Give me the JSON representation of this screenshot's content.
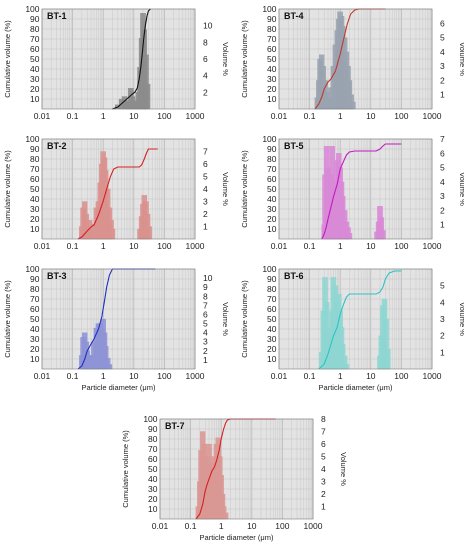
{
  "chart_data": [
    {
      "type": "bar",
      "title": "BT-1",
      "xlabel": "",
      "ylabel": "Cumulative volume (%)",
      "y2label": "Volume %",
      "x_scale": "log",
      "xlim": [
        0.01,
        1000
      ],
      "ylim": [
        0,
        100
      ],
      "y2lim": [
        0,
        12
      ],
      "x_ticks": [
        "0.01",
        "0.1",
        "1",
        "10",
        "100",
        "1000"
      ],
      "y_ticks": [
        "10",
        "20",
        "30",
        "40",
        "50",
        "60",
        "70",
        "80",
        "90",
        "100"
      ],
      "y2_ticks": [
        "2",
        "4",
        "6",
        "8",
        "10"
      ],
      "bar_color": "#8c8c8c",
      "line_color": "#111111",
      "distribution": {
        "name": "Volume %",
        "x": [
          3,
          4,
          5,
          6,
          7,
          8,
          9,
          10,
          12,
          14,
          16,
          18,
          20,
          22,
          25,
          28
        ],
        "values": [
          0.5,
          1.2,
          1.5,
          1.0,
          0.9,
          2.5,
          1.5,
          0.8,
          1.0,
          2.0,
          5.0,
          8.5,
          11.5,
          9.5,
          6.5,
          3.0
        ]
      },
      "cumulative": {
        "name": "Cumulative volume (%)",
        "x": [
          2,
          3,
          5,
          7,
          9,
          11,
          13,
          15,
          17,
          19,
          21,
          24,
          27,
          30,
          35
        ],
        "values": [
          0,
          2,
          8,
          12,
          15,
          17,
          21,
          30,
          42,
          56,
          70,
          84,
          93,
          98,
          100
        ]
      }
    },
    {
      "type": "bar",
      "title": "BT-4",
      "xlabel": "",
      "ylabel": "Cumulative volume (%)",
      "y2label": "Volume %",
      "x_scale": "log",
      "xlim": [
        0.01,
        1000
      ],
      "ylim": [
        0,
        100
      ],
      "y2lim": [
        0,
        7
      ],
      "x_ticks": [
        "0.01",
        "0.1",
        "1",
        "10",
        "100",
        "1000"
      ],
      "y_ticks": [
        "10",
        "20",
        "30",
        "40",
        "50",
        "60",
        "70",
        "80",
        "90",
        "100"
      ],
      "y2_ticks": [
        "1",
        "2",
        "3",
        "4",
        "5",
        "6"
      ],
      "bar_color": "#9aa3b0",
      "line_color": "#c0392b",
      "distribution": {
        "name": "Volume %",
        "x": [
          0.18,
          0.2,
          0.22,
          0.25,
          0.28,
          0.32,
          0.36,
          0.4,
          0.45,
          0.5,
          0.6,
          0.7,
          0.8,
          0.9,
          1.0,
          1.1,
          1.2,
          1.4,
          1.6,
          1.8,
          2.0,
          2.3,
          2.6
        ],
        "values": [
          0.8,
          2.0,
          3.5,
          3.8,
          3.0,
          2.0,
          1.2,
          0.6,
          0.8,
          1.5,
          3.0,
          4.5,
          5.5,
          6.3,
          6.8,
          6.5,
          5.8,
          5.0,
          4.0,
          3.0,
          2.0,
          1.0,
          0.5
        ]
      },
      "cumulative": {
        "name": "Cumulative volume (%)",
        "x": [
          0.15,
          0.2,
          0.25,
          0.3,
          0.4,
          0.5,
          0.7,
          1.0,
          1.3,
          1.7,
          2.2,
          3.0,
          4.0,
          10,
          30
        ],
        "values": [
          0,
          5,
          12,
          20,
          27,
          30,
          38,
          55,
          70,
          85,
          95,
          99,
          100,
          100,
          100
        ]
      }
    },
    {
      "type": "bar",
      "title": "BT-2",
      "xlabel": "",
      "ylabel": "Cumulative volume (%)",
      "y2label": "Volume %",
      "x_scale": "log",
      "xlim": [
        0.01,
        1000
      ],
      "ylim": [
        0,
        100
      ],
      "y2lim": [
        0,
        8
      ],
      "x_ticks": [
        "0.01",
        "0.1",
        "1",
        "10",
        "100",
        "1000"
      ],
      "y_ticks": [
        "10",
        "20",
        "30",
        "40",
        "50",
        "60",
        "70",
        "80",
        "90",
        "100"
      ],
      "y2_ticks": [
        "1",
        "2",
        "3",
        "4",
        "5",
        "6",
        "7"
      ],
      "bar_color": "#d9928f",
      "line_color": "#d42020",
      "distribution": {
        "name": "Volume %",
        "x": [
          0.2,
          0.22,
          0.25,
          0.28,
          0.32,
          0.36,
          0.4,
          0.5,
          0.6,
          0.7,
          0.8,
          0.9,
          1.0,
          1.1,
          1.2,
          1.4,
          1.6,
          1.8,
          2.0,
          16,
          18,
          20,
          22,
          25,
          28,
          32
        ],
        "values": [
          1.0,
          2.5,
          3.0,
          2.0,
          1.0,
          1.5,
          0.8,
          1.2,
          2.5,
          3.0,
          4.5,
          6.0,
          7.0,
          6.5,
          5.5,
          4.0,
          2.5,
          1.5,
          0.8,
          0.8,
          1.8,
          2.8,
          3.5,
          3.0,
          2.0,
          1.0
        ]
      },
      "cumulative": {
        "name": "Cumulative volume (%)",
        "x": [
          0.15,
          0.2,
          0.3,
          0.4,
          0.5,
          0.7,
          1.0,
          1.3,
          1.7,
          2.2,
          3.0,
          5.0,
          10,
          15,
          18,
          22,
          26,
          30,
          40,
          60
        ],
        "values": [
          0,
          2,
          8,
          12,
          14,
          24,
          38,
          50,
          62,
          70,
          72,
          72,
          72,
          72,
          74,
          80,
          86,
          90,
          90,
          90
        ]
      }
    },
    {
      "type": "bar",
      "title": "BT-5",
      "xlabel": "",
      "ylabel": "Cumulative volume (%)",
      "y2label": "Volume %",
      "x_scale": "log",
      "xlim": [
        0.01,
        1000
      ],
      "ylim": [
        0,
        100
      ],
      "y2lim": [
        0,
        7
      ],
      "x_ticks": [
        "0.01",
        "0.1",
        "1",
        "10",
        "100",
        "1000"
      ],
      "y_ticks": [
        "10",
        "20",
        "30",
        "40",
        "50",
        "60",
        "70",
        "80",
        "90",
        "100"
      ],
      "y2_ticks": [
        "1",
        "2",
        "3",
        "4",
        "5",
        "6",
        "7"
      ],
      "bar_color": "#d88ad6",
      "line_color": "#c219c2",
      "distribution": {
        "name": "Volume %",
        "x": [
          0.3,
          0.32,
          0.36,
          0.4,
          0.45,
          0.5,
          0.55,
          0.6,
          0.7,
          0.8,
          0.9,
          1.0,
          1.1,
          1.2,
          1.4,
          1.6,
          1.8,
          2.0,
          16,
          18,
          20,
          22,
          25
        ],
        "values": [
          1.0,
          4.5,
          6.5,
          5.0,
          3.0,
          4.5,
          6.5,
          4.0,
          3.0,
          5.5,
          6.0,
          5.0,
          4.0,
          3.0,
          2.0,
          1.2,
          0.8,
          0.4,
          0.5,
          1.2,
          2.3,
          1.5,
          0.6
        ]
      },
      "cumulative": {
        "name": "Cumulative volume (%)",
        "x": [
          0.25,
          0.3,
          0.35,
          0.4,
          0.5,
          0.6,
          0.8,
          1.0,
          1.3,
          1.6,
          2.0,
          3.0,
          10,
          15,
          20,
          25,
          30,
          100
        ],
        "values": [
          0,
          5,
          12,
          20,
          32,
          42,
          55,
          70,
          78,
          84,
          87,
          88,
          88,
          88,
          90,
          93,
          95,
          95
        ]
      }
    },
    {
      "type": "bar",
      "title": "BT-3",
      "xlabel": "Particle diameter (μm)",
      "ylabel": "Cumulative volume (%)",
      "y2label": "Volume %",
      "x_scale": "log",
      "xlim": [
        0.01,
        1000
      ],
      "ylim": [
        0,
        100
      ],
      "y2lim": [
        0,
        11
      ],
      "x_ticks": [
        "0.01",
        "0.1",
        "1",
        "10",
        "100",
        "1000"
      ],
      "y_ticks": [
        "10",
        "20",
        "30",
        "40",
        "50",
        "60",
        "70",
        "80",
        "90",
        "100"
      ],
      "y2_ticks": [
        "1",
        "2",
        "3",
        "4",
        "5",
        "6",
        "7",
        "8",
        "9",
        "10"
      ],
      "bar_color": "#8f93d6",
      "line_color": "#2030c0",
      "distribution": {
        "name": "Volume %",
        "x": [
          0.2,
          0.22,
          0.25,
          0.28,
          0.3,
          0.32,
          0.36,
          0.4,
          0.45,
          0.5,
          0.6,
          0.7,
          0.8,
          0.9,
          1.0,
          1.1,
          1.2,
          1.4,
          1.6
        ],
        "values": [
          1.5,
          3.5,
          4.0,
          3.0,
          2.0,
          1.5,
          1.0,
          0.8,
          1.5,
          3.0,
          4.5,
          5.0,
          5.0,
          4.5,
          5.5,
          4.0,
          2.5,
          1.2,
          0.5
        ]
      },
      "cumulative": {
        "name": "Cumulative volume (%)",
        "x": [
          0.15,
          0.2,
          0.25,
          0.3,
          0.4,
          0.5,
          0.7,
          0.9,
          1.1,
          1.3,
          1.6,
          2.0,
          3.0,
          50
        ],
        "values": [
          0,
          3,
          10,
          18,
          25,
          30,
          40,
          52,
          68,
          82,
          94,
          100,
          100,
          100
        ]
      }
    },
    {
      "type": "bar",
      "title": "BT-6",
      "xlabel": "Particle diameter (μm)",
      "ylabel": "Cumulative volume (%)",
      "y2label": "Volume %",
      "x_scale": "log",
      "xlim": [
        0.01,
        1000
      ],
      "ylim": [
        0,
        100
      ],
      "y2lim": [
        0,
        6
      ],
      "x_ticks": [
        "0.01",
        "0.1",
        "1",
        "10",
        "100",
        "1000"
      ],
      "y_ticks": [
        "10",
        "20",
        "30",
        "40",
        "50",
        "60",
        "70",
        "80",
        "90",
        "100"
      ],
      "y2_ticks": [
        "1",
        "2",
        "3",
        "4",
        "5"
      ],
      "bar_color": "#8fd6d1",
      "line_color": "#2cc4c4",
      "distribution": {
        "name": "Volume %",
        "x": [
          0.25,
          0.28,
          0.32,
          0.36,
          0.4,
          0.45,
          0.5,
          0.55,
          0.6,
          0.7,
          0.8,
          0.9,
          1.0,
          1.1,
          1.2,
          1.4,
          1.6,
          20,
          22,
          25,
          28,
          32,
          36
        ],
        "values": [
          1.0,
          3.5,
          5.5,
          4.0,
          2.5,
          1.5,
          2.0,
          3.5,
          5.5,
          5.0,
          4.0,
          4.5,
          3.5,
          2.5,
          1.5,
          0.8,
          0.3,
          0.8,
          2.0,
          3.8,
          4.2,
          3.0,
          1.2
        ]
      },
      "cumulative": {
        "name": "Cumulative volume (%)",
        "x": [
          0.2,
          0.3,
          0.4,
          0.5,
          0.6,
          0.8,
          1.0,
          1.3,
          1.6,
          2.0,
          5.0,
          15,
          20,
          25,
          30,
          40,
          60,
          100
        ],
        "values": [
          0,
          5,
          15,
          25,
          33,
          42,
          55,
          65,
          72,
          75,
          75,
          75,
          77,
          82,
          90,
          96,
          98,
          98
        ]
      }
    },
    {
      "type": "bar",
      "title": "BT-7",
      "xlabel": "Particle diameter (μm)",
      "ylabel": "Cumulative volume (%)",
      "y2label": "Volume %",
      "x_scale": "log",
      "xlim": [
        0.01,
        1000
      ],
      "ylim": [
        0,
        100
      ],
      "y2lim": [
        0,
        8
      ],
      "x_ticks": [
        "0.01",
        "0.1",
        "1",
        "10",
        "100",
        "1000"
      ],
      "y_ticks": [
        "10",
        "20",
        "30",
        "40",
        "50",
        "60",
        "70",
        "80",
        "90",
        "100"
      ],
      "y2_ticks": [
        "1",
        "2",
        "3",
        "4",
        "5",
        "6",
        "7",
        "8"
      ],
      "bar_color": "#d99895",
      "line_color": "#d42020",
      "distribution": {
        "name": "Volume %",
        "x": [
          0.18,
          0.2,
          0.22,
          0.25,
          0.28,
          0.3,
          0.32,
          0.36,
          0.4,
          0.45,
          0.5,
          0.55,
          0.6,
          0.7,
          0.8,
          0.9,
          1.0,
          1.1,
          1.2,
          1.4
        ],
        "values": [
          1.0,
          3.0,
          5.5,
          7.0,
          6.0,
          4.5,
          3.5,
          5.0,
          6.0,
          4.5,
          3.0,
          3.5,
          5.0,
          6.0,
          6.5,
          5.0,
          3.5,
          2.0,
          1.0,
          0.5
        ]
      },
      "cumulative": {
        "name": "Cumulative volume (%)",
        "x": [
          0.15,
          0.2,
          0.25,
          0.3,
          0.35,
          0.4,
          0.5,
          0.6,
          0.7,
          0.85,
          1.0,
          1.2,
          1.4,
          1.6,
          2.0,
          10,
          30,
          60
        ],
        "values": [
          0,
          5,
          15,
          28,
          35,
          40,
          48,
          52,
          58,
          68,
          80,
          90,
          96,
          99,
          100,
          100,
          100,
          100
        ]
      }
    }
  ]
}
